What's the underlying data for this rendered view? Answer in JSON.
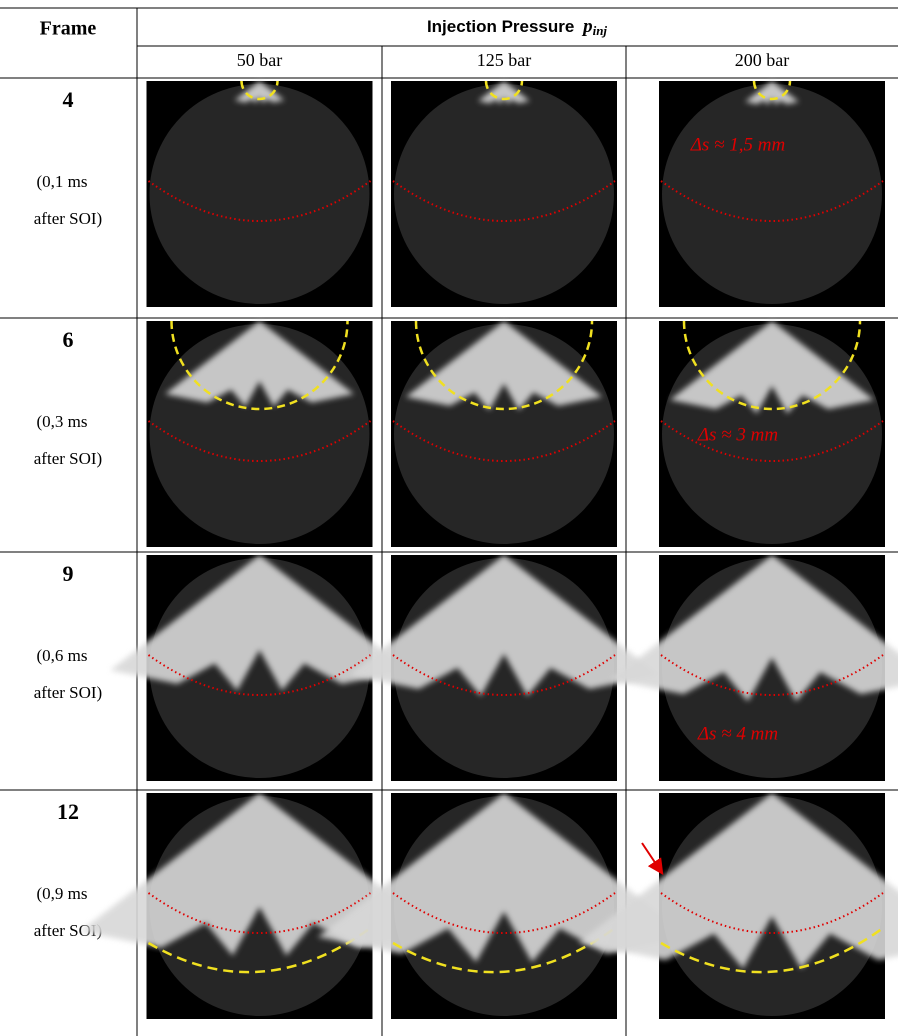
{
  "header": {
    "frame": "Frame",
    "group": "Injection Pressure",
    "group_symbol": "p",
    "group_subscript": "inj",
    "pressures": [
      "50 bar",
      "125 bar",
      "200 bar"
    ]
  },
  "rows": [
    {
      "frame": "4",
      "time": "(0,1 ms",
      "after": "after SOI)",
      "annotation": "Δs ≈ 1,5 mm"
    },
    {
      "frame": "6",
      "time": "(0,3 ms",
      "after": "after SOI)",
      "annotation": "Δs ≈ 3 mm"
    },
    {
      "frame": "9",
      "time": "(0,6 ms",
      "after": "after SOI)",
      "annotation": "Δs ≈ 4 mm"
    },
    {
      "frame": "12",
      "time": "(0,9 ms",
      "after": "after SOI)"
    }
  ]
}
